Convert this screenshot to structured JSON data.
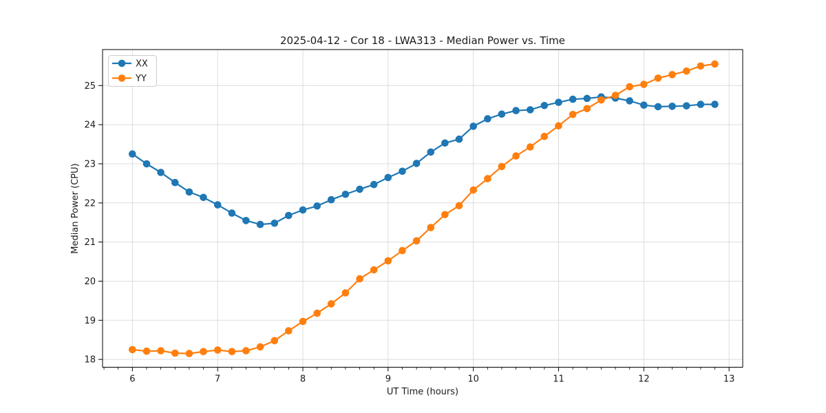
{
  "chart_data": {
    "type": "line",
    "title": "2025-04-12 - Cor 18 - LWA313 - Median Power vs. Time",
    "xlabel": "UT Time (hours)",
    "ylabel": "Median Power (CPU)",
    "xlim": [
      5.65,
      13.16
    ],
    "ylim": [
      17.8,
      25.92
    ],
    "x_ticks": [
      6,
      7,
      8,
      9,
      10,
      11,
      12,
      13
    ],
    "y_ticks": [
      18,
      19,
      20,
      21,
      22,
      23,
      24,
      25
    ],
    "x_minor_tick_step": 0.1667,
    "grid": true,
    "grid_color": "#dcdcdc",
    "spine_color": "#000000",
    "legend_position": "upper left",
    "marker": "o",
    "x": [
      6.0,
      6.167,
      6.333,
      6.5,
      6.667,
      6.833,
      7.0,
      7.167,
      7.333,
      7.5,
      7.667,
      7.833,
      8.0,
      8.167,
      8.333,
      8.5,
      8.667,
      8.833,
      9.0,
      9.167,
      9.333,
      9.5,
      9.667,
      9.833,
      10.0,
      10.167,
      10.333,
      10.5,
      10.667,
      10.833,
      11.0,
      11.167,
      11.333,
      11.5,
      11.667,
      11.833,
      12.0,
      12.167,
      12.333,
      12.5,
      12.667,
      12.833
    ],
    "series": [
      {
        "name": "XX",
        "color": "#1f77b4",
        "values": [
          23.25,
          23.0,
          22.78,
          22.52,
          22.28,
          22.14,
          21.95,
          21.74,
          21.55,
          21.45,
          21.48,
          21.68,
          21.82,
          21.92,
          22.08,
          22.22,
          22.35,
          22.47,
          22.65,
          22.81,
          23.01,
          23.3,
          23.53,
          23.63,
          23.96,
          24.15,
          24.27,
          24.36,
          24.38,
          24.49,
          24.57,
          24.65,
          24.67,
          24.71,
          24.68,
          24.61,
          24.5,
          24.46,
          24.47,
          24.48,
          24.52,
          24.52
        ]
      },
      {
        "name": "YY",
        "color": "#ff7f0e",
        "values": [
          18.25,
          18.21,
          18.22,
          18.16,
          18.15,
          18.2,
          18.24,
          18.2,
          18.22,
          18.32,
          18.48,
          18.73,
          18.97,
          19.18,
          19.42,
          19.7,
          20.06,
          20.29,
          20.52,
          20.78,
          21.03,
          21.37,
          21.7,
          21.93,
          22.33,
          22.62,
          22.93,
          23.2,
          23.43,
          23.7,
          23.97,
          24.26,
          24.41,
          24.63,
          24.75,
          24.97,
          25.03,
          25.19,
          25.28,
          25.37,
          25.5,
          25.55
        ]
      }
    ]
  }
}
